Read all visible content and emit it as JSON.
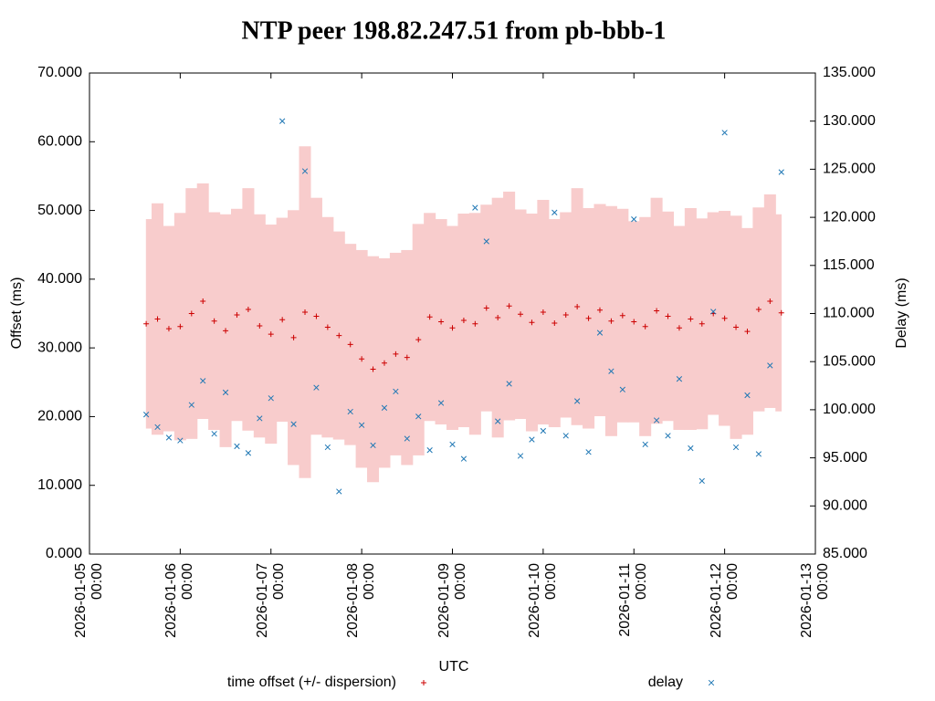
{
  "chart_data": {
    "type": "scatter",
    "title": "NTP peer 198.82.247.51 from pb-bbb-1",
    "x_label": "UTC",
    "y_label": "Offset (ms)",
    "y2_label": "Delay (ms)",
    "xlim": [
      "2026-01-05 00:00",
      "2026-01-13 00:00"
    ],
    "xticks": [
      "2026-01-05 00:00",
      "2026-01-06 00:00",
      "2026-01-07 00:00",
      "2026-01-08 00:00",
      "2026-01-09 00:00",
      "2026-01-10 00:00",
      "2026-01-11 00:00",
      "2026-01-12 00:00",
      "2026-01-13 00:00"
    ],
    "ylim": [
      0,
      70
    ],
    "yticks": [
      {
        "value": 0,
        "label": "0.000"
      },
      {
        "value": 10,
        "label": "10.000"
      },
      {
        "value": 20,
        "label": "20.000"
      },
      {
        "value": 30,
        "label": "30.000"
      },
      {
        "value": 40,
        "label": "40.000"
      },
      {
        "value": 50,
        "label": "50.000"
      },
      {
        "value": 60,
        "label": "60.000"
      },
      {
        "value": 70,
        "label": "70.000"
      }
    ],
    "y2lim": [
      85,
      135
    ],
    "y2ticks": [
      {
        "value": 85,
        "label": "85.000"
      },
      {
        "value": 90,
        "label": "90.000"
      },
      {
        "value": 95,
        "label": "95.000"
      },
      {
        "value": 100,
        "label": "100.000"
      },
      {
        "value": 105,
        "label": "105.000"
      },
      {
        "value": 110,
        "label": "110.000"
      },
      {
        "value": 115,
        "label": "115.000"
      },
      {
        "value": 120,
        "label": "120.000"
      },
      {
        "value": 125,
        "label": "125.000"
      },
      {
        "value": 130,
        "label": "130.000"
      },
      {
        "value": 135,
        "label": "135.000"
      }
    ],
    "x": [
      "2026-01-05 15:00",
      "2026-01-05 18:00",
      "2026-01-05 21:00",
      "2026-01-06 00:00",
      "2026-01-06 03:00",
      "2026-01-06 06:00",
      "2026-01-06 09:00",
      "2026-01-06 12:00",
      "2026-01-06 15:00",
      "2026-01-06 18:00",
      "2026-01-06 21:00",
      "2026-01-07 00:00",
      "2026-01-07 03:00",
      "2026-01-07 06:00",
      "2026-01-07 09:00",
      "2026-01-07 12:00",
      "2026-01-07 15:00",
      "2026-01-07 18:00",
      "2026-01-07 21:00",
      "2026-01-08 00:00",
      "2026-01-08 03:00",
      "2026-01-08 06:00",
      "2026-01-08 09:00",
      "2026-01-08 12:00",
      "2026-01-08 15:00",
      "2026-01-08 18:00",
      "2026-01-08 21:00",
      "2026-01-09 00:00",
      "2026-01-09 03:00",
      "2026-01-09 06:00",
      "2026-01-09 09:00",
      "2026-01-09 12:00",
      "2026-01-09 15:00",
      "2026-01-09 18:00",
      "2026-01-09 21:00",
      "2026-01-10 00:00",
      "2026-01-10 03:00",
      "2026-01-10 06:00",
      "2026-01-10 09:00",
      "2026-01-10 12:00",
      "2026-01-10 15:00",
      "2026-01-10 18:00",
      "2026-01-10 21:00",
      "2026-01-11 00:00",
      "2026-01-11 03:00",
      "2026-01-11 06:00",
      "2026-01-11 09:00",
      "2026-01-11 12:00",
      "2026-01-11 15:00",
      "2026-01-11 18:00",
      "2026-01-11 21:00",
      "2026-01-12 00:00",
      "2026-01-12 03:00",
      "2026-01-12 06:00",
      "2026-01-12 09:00",
      "2026-01-12 12:00",
      "2026-01-12 15:00"
    ],
    "series": [
      {
        "name": "time offset (+/- dispersion)",
        "color": "#cc0000",
        "band_color": "#f8cccc",
        "values": [
          33.5,
          34.2,
          32.8,
          33.1,
          35.0,
          36.8,
          33.9,
          32.5,
          34.8,
          35.6,
          33.2,
          32.0,
          34.1,
          31.5,
          35.2,
          34.6,
          33.0,
          31.8,
          30.5,
          28.4,
          26.9,
          27.8,
          29.1,
          28.6,
          31.2,
          34.5,
          33.8,
          32.9,
          34.0,
          33.5,
          35.8,
          34.4,
          36.1,
          34.9,
          33.7,
          35.2,
          33.6,
          34.8,
          36.0,
          34.3,
          35.5,
          33.9,
          34.7,
          33.8,
          33.1,
          35.4,
          34.6,
          32.9,
          34.2,
          33.5,
          35.0,
          34.3,
          33.0,
          32.4,
          35.6,
          36.8,
          35.1
        ],
        "dispersion": [
          15.2,
          16.8,
          14.9,
          16.5,
          18.2,
          17.1,
          15.8,
          16.9,
          15.4,
          17.6,
          16.2,
          15.9,
          14.8,
          18.5,
          24.1,
          17.2,
          16.0,
          15.1,
          14.6,
          15.8,
          16.4,
          15.2,
          14.7,
          15.6,
          16.8,
          15.1,
          14.9,
          14.8,
          15.5,
          16.1,
          15.0,
          17.4,
          16.6,
          15.2,
          15.8,
          16.3,
          15.1,
          14.9,
          17.2,
          16.0,
          15.4,
          16.7,
          15.5,
          14.6,
          15.9,
          16.4,
          15.2,
          14.8,
          16.1,
          15.3,
          14.7,
          15.6,
          16.2,
          15.0,
          14.8,
          15.5,
          14.3
        ]
      },
      {
        "name": "delay",
        "color": "#1f77b4",
        "axis": "y2",
        "values": [
          99.5,
          98.2,
          97.1,
          96.8,
          100.5,
          103.0,
          97.5,
          101.8,
          96.2,
          95.5,
          99.1,
          101.2,
          130.0,
          98.5,
          124.8,
          102.3,
          96.1,
          91.5,
          99.8,
          98.4,
          96.3,
          100.2,
          101.9,
          97.0,
          99.3,
          95.8,
          100.7,
          96.4,
          94.9,
          121.0,
          117.5,
          98.8,
          102.7,
          95.2,
          96.9,
          97.8,
          120.5,
          97.3,
          100.9,
          95.6,
          108.0,
          104.0,
          102.1,
          119.8,
          96.4,
          98.9,
          97.3,
          103.2,
          96.0,
          92.6,
          110.2,
          128.8,
          96.1,
          101.5,
          95.4,
          104.6,
          124.7
        ]
      }
    ]
  }
}
